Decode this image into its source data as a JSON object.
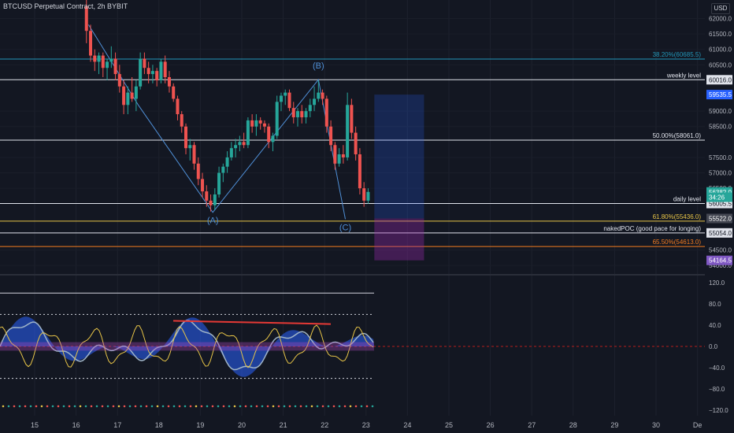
{
  "symbol": {
    "title": "BTCUSD Perpetual Contract, 2h BYBIT",
    "currency": "USD"
  },
  "colors": {
    "background": "#131722",
    "up": "#26a69a",
    "down": "#ef5350",
    "axis_text": "#b2b5be",
    "wave": "#4f8fd6"
  },
  "chart_data": [
    {
      "type": "candlestick",
      "ylim": [
        53800,
        62600
      ],
      "price_ticks": [
        62000,
        61500,
        61000,
        60500,
        59000,
        58500,
        57500,
        57000,
        56500,
        54500,
        54000
      ],
      "x_ticks": [
        "15",
        "16",
        "17",
        "18",
        "19",
        "20",
        "21",
        "22",
        "23",
        "24",
        "25",
        "26",
        "27",
        "28",
        "29",
        "30",
        "De"
      ],
      "levels": [
        {
          "label": "38.20%(60685.5)",
          "price": 60685.5,
          "color": "#2196b8",
          "kind": "fib"
        },
        {
          "label": "weekly level",
          "price": 60016.0,
          "price_label": "60016.0",
          "color": "#e0e3eb",
          "kind": "hline"
        },
        {
          "label": "50.00%(58061.0)",
          "price": 58061.0,
          "color": "#e0e3eb",
          "kind": "fib"
        },
        {
          "label": "daily level",
          "price": 56005.5,
          "price_label": "56005.5",
          "color": "#e0e3eb",
          "kind": "hline"
        },
        {
          "label": "61.80%(55436.0)",
          "price": 55436.0,
          "color": "#e8c547",
          "kind": "fib"
        },
        {
          "label": "nakedPOC (good pace for longing)",
          "price": 55054.0,
          "price_label": "55054.0",
          "color": "#e0e3eb",
          "kind": "hline"
        },
        {
          "label": "65.50%(54613.0)",
          "price": 54613.0,
          "color": "#f57c1f",
          "kind": "fib"
        }
      ],
      "badges": [
        {
          "text": "59535.5",
          "price": 59535.5,
          "bg": "#2962ff"
        },
        {
          "text": "56382.0",
          "price": 56382.0,
          "bg": "#26a69a"
        },
        {
          "text": "34:26",
          "price": 56210.0,
          "bg": "#26a69a"
        },
        {
          "text": "55522.0",
          "price": 55522.0,
          "bg": "#434651"
        },
        {
          "text": "54164.5",
          "price": 54164.5,
          "bg": "#7e57c2"
        }
      ],
      "waves": [
        {
          "label": "(A)",
          "day": 19.3,
          "price": 55720
        },
        {
          "label": "(B)",
          "day": 21.85,
          "price": 60020
        },
        {
          "label": "(C)",
          "day": 22.5,
          "price": 55500
        }
      ],
      "wave_path": [
        [
          16.3,
          61800
        ],
        [
          17.5,
          59200
        ],
        [
          19.3,
          55720
        ],
        [
          21.85,
          60020
        ],
        [
          22.5,
          55500
        ]
      ],
      "position_box": {
        "day_start": 23.2,
        "day_end": 24.4,
        "entry": 55522.0,
        "target": 59535.5,
        "stop": 54164.5
      },
      "candles": [
        {
          "d": 16.25,
          "o": 62400,
          "h": 62600,
          "l": 61200,
          "c": 61600
        },
        {
          "d": 16.35,
          "o": 61600,
          "h": 61800,
          "l": 60600,
          "c": 60800
        },
        {
          "d": 16.45,
          "o": 60800,
          "h": 61000,
          "l": 60300,
          "c": 60600
        },
        {
          "d": 16.55,
          "o": 60600,
          "h": 60900,
          "l": 60200,
          "c": 60800
        },
        {
          "d": 16.65,
          "o": 60800,
          "h": 60900,
          "l": 60100,
          "c": 60400
        },
        {
          "d": 16.75,
          "o": 60400,
          "h": 60700,
          "l": 60000,
          "c": 60600
        },
        {
          "d": 16.85,
          "o": 60600,
          "h": 61100,
          "l": 60400,
          "c": 60700
        },
        {
          "d": 16.95,
          "o": 60700,
          "h": 60900,
          "l": 60000,
          "c": 60200
        },
        {
          "d": 17.05,
          "o": 60200,
          "h": 60500,
          "l": 59600,
          "c": 59800
        },
        {
          "d": 17.15,
          "o": 59800,
          "h": 60000,
          "l": 58900,
          "c": 59200
        },
        {
          "d": 17.25,
          "o": 59200,
          "h": 59800,
          "l": 58900,
          "c": 59600
        },
        {
          "d": 17.35,
          "o": 59600,
          "h": 60100,
          "l": 59300,
          "c": 59400
        },
        {
          "d": 17.45,
          "o": 59400,
          "h": 60000,
          "l": 59000,
          "c": 59800
        },
        {
          "d": 17.55,
          "o": 59800,
          "h": 60900,
          "l": 59700,
          "c": 60700
        },
        {
          "d": 17.65,
          "o": 60700,
          "h": 60900,
          "l": 60200,
          "c": 60400
        },
        {
          "d": 17.75,
          "o": 60400,
          "h": 60600,
          "l": 59900,
          "c": 60200
        },
        {
          "d": 17.85,
          "o": 60200,
          "h": 60500,
          "l": 59900,
          "c": 60300
        },
        {
          "d": 17.95,
          "o": 60300,
          "h": 60400,
          "l": 59800,
          "c": 60000
        },
        {
          "d": 18.05,
          "o": 60000,
          "h": 60700,
          "l": 59900,
          "c": 60600
        },
        {
          "d": 18.15,
          "o": 60600,
          "h": 60800,
          "l": 59900,
          "c": 60100
        },
        {
          "d": 18.25,
          "o": 60100,
          "h": 60300,
          "l": 59600,
          "c": 59800
        },
        {
          "d": 18.35,
          "o": 59800,
          "h": 59900,
          "l": 59300,
          "c": 59400
        },
        {
          "d": 18.45,
          "o": 59400,
          "h": 59500,
          "l": 58700,
          "c": 58900
        },
        {
          "d": 18.55,
          "o": 58900,
          "h": 59000,
          "l": 58300,
          "c": 58500
        },
        {
          "d": 18.65,
          "o": 58500,
          "h": 58600,
          "l": 57600,
          "c": 57800
        },
        {
          "d": 18.75,
          "o": 57800,
          "h": 58100,
          "l": 57400,
          "c": 57900
        },
        {
          "d": 18.85,
          "o": 57900,
          "h": 58000,
          "l": 57100,
          "c": 57300
        },
        {
          "d": 18.95,
          "o": 57300,
          "h": 57500,
          "l": 56600,
          "c": 56800
        },
        {
          "d": 19.05,
          "o": 56800,
          "h": 57000,
          "l": 56200,
          "c": 56400
        },
        {
          "d": 19.15,
          "o": 56400,
          "h": 56600,
          "l": 55900,
          "c": 56100
        },
        {
          "d": 19.25,
          "o": 56100,
          "h": 56300,
          "l": 55750,
          "c": 55950
        },
        {
          "d": 19.35,
          "o": 55950,
          "h": 56500,
          "l": 55800,
          "c": 56300
        },
        {
          "d": 19.45,
          "o": 56300,
          "h": 57200,
          "l": 56200,
          "c": 57000
        },
        {
          "d": 19.55,
          "o": 57000,
          "h": 57300,
          "l": 56700,
          "c": 57200
        },
        {
          "d": 19.65,
          "o": 57200,
          "h": 57700,
          "l": 57000,
          "c": 57500
        },
        {
          "d": 19.75,
          "o": 57500,
          "h": 58000,
          "l": 57400,
          "c": 57800
        },
        {
          "d": 19.85,
          "o": 57800,
          "h": 58100,
          "l": 57500,
          "c": 57900
        },
        {
          "d": 19.95,
          "o": 57900,
          "h": 58200,
          "l": 57700,
          "c": 58000
        },
        {
          "d": 20.05,
          "o": 58000,
          "h": 58300,
          "l": 57800,
          "c": 57900
        },
        {
          "d": 20.15,
          "o": 57900,
          "h": 58800,
          "l": 57800,
          "c": 58700
        },
        {
          "d": 20.25,
          "o": 58700,
          "h": 58900,
          "l": 58300,
          "c": 58500
        },
        {
          "d": 20.35,
          "o": 58500,
          "h": 58900,
          "l": 58200,
          "c": 58700
        },
        {
          "d": 20.45,
          "o": 58700,
          "h": 58800,
          "l": 58400,
          "c": 58600
        },
        {
          "d": 20.55,
          "o": 58600,
          "h": 58700,
          "l": 58300,
          "c": 58500
        },
        {
          "d": 20.65,
          "o": 58500,
          "h": 58600,
          "l": 57800,
          "c": 58000
        },
        {
          "d": 20.75,
          "o": 58000,
          "h": 58300,
          "l": 57700,
          "c": 58200
        },
        {
          "d": 20.85,
          "o": 58200,
          "h": 59500,
          "l": 58100,
          "c": 59300
        },
        {
          "d": 20.95,
          "o": 59300,
          "h": 59600,
          "l": 59000,
          "c": 59500
        },
        {
          "d": 21.05,
          "o": 59500,
          "h": 59700,
          "l": 59200,
          "c": 59600
        },
        {
          "d": 21.15,
          "o": 59600,
          "h": 59700,
          "l": 59000,
          "c": 59100
        },
        {
          "d": 21.25,
          "o": 59100,
          "h": 59300,
          "l": 58600,
          "c": 58800
        },
        {
          "d": 21.35,
          "o": 58800,
          "h": 59100,
          "l": 58500,
          "c": 59000
        },
        {
          "d": 21.45,
          "o": 59000,
          "h": 59200,
          "l": 58600,
          "c": 58800
        },
        {
          "d": 21.55,
          "o": 58800,
          "h": 59100,
          "l": 58600,
          "c": 59000
        },
        {
          "d": 21.65,
          "o": 59000,
          "h": 59400,
          "l": 58800,
          "c": 59200
        },
        {
          "d": 21.75,
          "o": 59200,
          "h": 59800,
          "l": 59000,
          "c": 59400
        },
        {
          "d": 21.85,
          "o": 59400,
          "h": 60000,
          "l": 59300,
          "c": 59600
        },
        {
          "d": 21.95,
          "o": 59600,
          "h": 59700,
          "l": 59200,
          "c": 59400
        },
        {
          "d": 22.05,
          "o": 59400,
          "h": 59500,
          "l": 58300,
          "c": 58500
        },
        {
          "d": 22.15,
          "o": 58500,
          "h": 58700,
          "l": 57700,
          "c": 57900
        },
        {
          "d": 22.25,
          "o": 57900,
          "h": 58000,
          "l": 57100,
          "c": 57300
        },
        {
          "d": 22.35,
          "o": 57300,
          "h": 57800,
          "l": 57200,
          "c": 57600
        },
        {
          "d": 22.45,
          "o": 57600,
          "h": 57900,
          "l": 57300,
          "c": 57500
        },
        {
          "d": 22.55,
          "o": 57500,
          "h": 59600,
          "l": 57400,
          "c": 59200
        },
        {
          "d": 22.65,
          "o": 59200,
          "h": 59400,
          "l": 58100,
          "c": 58300
        },
        {
          "d": 22.75,
          "o": 58300,
          "h": 58500,
          "l": 57400,
          "c": 57600
        },
        {
          "d": 22.85,
          "o": 57600,
          "h": 57800,
          "l": 56300,
          "c": 56500
        },
        {
          "d": 22.95,
          "o": 56500,
          "h": 56700,
          "l": 55900,
          "c": 56100
        },
        {
          "d": 23.05,
          "o": 56100,
          "h": 56500,
          "l": 56000,
          "c": 56382
        }
      ]
    },
    {
      "type": "oscillator",
      "ylim": [
        -130,
        130
      ],
      "y_ticks": [
        120.0,
        80.0,
        40.0,
        0.0,
        -40.0,
        -80.0,
        -120.0
      ],
      "hlines": [
        100,
        60,
        -60
      ],
      "zero_line_color": "#b71c1c"
    }
  ]
}
